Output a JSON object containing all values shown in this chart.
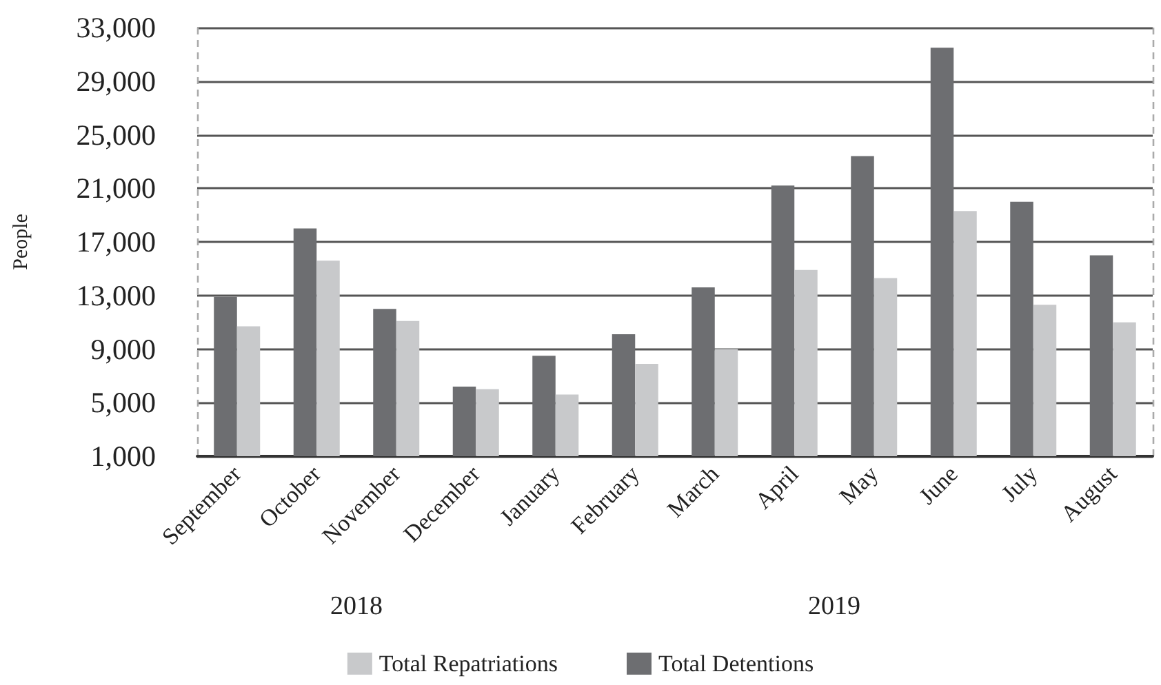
{
  "chart_data": {
    "type": "bar",
    "ylabel": "People",
    "categories": [
      "September",
      "October",
      "November",
      "December",
      "January",
      "February",
      "March",
      "April",
      "May",
      "June",
      "July",
      "August"
    ],
    "series": [
      {
        "name": "Total Detentions",
        "color": "#6d6e71",
        "values": [
          12900,
          18000,
          12000,
          6200,
          8500,
          10100,
          13600,
          21200,
          23400,
          31500,
          20000,
          16000
        ]
      },
      {
        "name": "Total Repatriations",
        "color": "#c8c9cb",
        "values": [
          10700,
          15600,
          11100,
          6000,
          5600,
          7900,
          9000,
          14900,
          14300,
          19300,
          12300,
          11000
        ]
      }
    ],
    "ylim": [
      1000,
      33000
    ],
    "yticks": [
      {
        "value": 1000,
        "label": "1,000"
      },
      {
        "value": 5000,
        "label": "5,000"
      },
      {
        "value": 9000,
        "label": "9,000"
      },
      {
        "value": 13000,
        "label": "13,000"
      },
      {
        "value": 17000,
        "label": "17,000"
      },
      {
        "value": 21000,
        "label": "21,000"
      },
      {
        "value": 25000,
        "label": "25,000"
      },
      {
        "value": 29000,
        "label": "29,000"
      },
      {
        "value": 33000,
        "label": "33,000"
      }
    ],
    "grid": "y",
    "legend": "bottom",
    "annotations": [
      "2018",
      "2019"
    ]
  }
}
